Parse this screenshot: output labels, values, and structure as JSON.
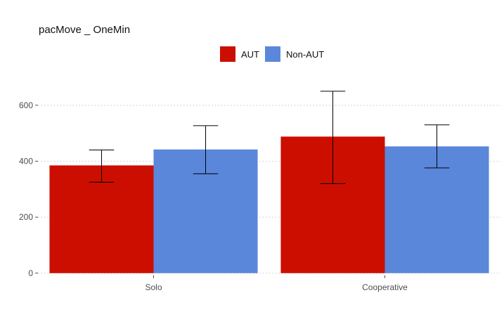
{
  "chart_data": {
    "type": "bar",
    "title": "pacMove _ OneMin",
    "xlabel": "",
    "ylabel": "",
    "categories": [
      "Solo",
      "Cooperative"
    ],
    "series": [
      {
        "name": "AUT",
        "color": "#cc0e00",
        "values": [
          385,
          488
        ],
        "error_low": [
          325,
          320
        ],
        "error_high": [
          440,
          650
        ]
      },
      {
        "name": "Non-AUT",
        "color": "#5b87db",
        "values": [
          442,
          453
        ],
        "error_low": [
          355,
          376
        ],
        "error_high": [
          527,
          530
        ]
      }
    ],
    "y_ticks": [
      0,
      200,
      400,
      600
    ],
    "y_tick_labels": [
      "0",
      "200",
      "400",
      "600"
    ],
    "ylim": [
      -8,
      700
    ],
    "grid": "horizontal-dotted",
    "legend": "top-center"
  }
}
